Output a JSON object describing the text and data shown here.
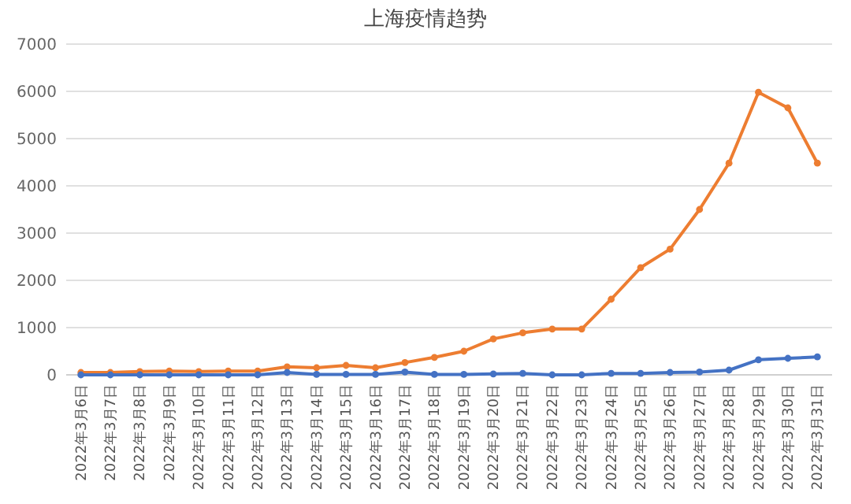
{
  "chart_data": {
    "type": "line",
    "title": "上海疫情趋势",
    "categories": [
      "2022年3月6日",
      "2022年3月7日",
      "2022年3月8日",
      "2022年3月9日",
      "2022年3月10日",
      "2022年3月11日",
      "2022年3月12日",
      "2022年3月13日",
      "2022年3月14日",
      "2022年3月15日",
      "2022年3月16日",
      "2022年3月17日",
      "2022年3月18日",
      "2022年3月19日",
      "2022年3月20日",
      "2022年3月21日",
      "2022年3月22日",
      "2022年3月23日",
      "2022年3月24日",
      "2022年3月25日",
      "2022年3月26日",
      "2022年3月27日",
      "2022年3月28日",
      "2022年3月29日",
      "2022年3月30日",
      "2022年3月31日"
    ],
    "series": [
      {
        "color": "#4472c4",
        "values": [
          0,
          0,
          0,
          0,
          0,
          0,
          0,
          50,
          10,
          10,
          10,
          60,
          10,
          10,
          20,
          30,
          0,
          0,
          30,
          30,
          50,
          60,
          100,
          320,
          350,
          380
        ]
      },
      {
        "color": "#ed7d31",
        "values": [
          50,
          50,
          70,
          80,
          70,
          80,
          80,
          170,
          150,
          200,
          150,
          260,
          370,
          500,
          760,
          890,
          970,
          970,
          1600,
          2270,
          2660,
          3500,
          4480,
          5980,
          5650,
          4480
        ]
      }
    ],
    "ylim": [
      0,
      7000
    ],
    "yticks": [
      0,
      1000,
      2000,
      3000,
      4000,
      5000,
      6000,
      7000
    ],
    "grid": "y",
    "marker": "circle",
    "line_style": "solid"
  }
}
